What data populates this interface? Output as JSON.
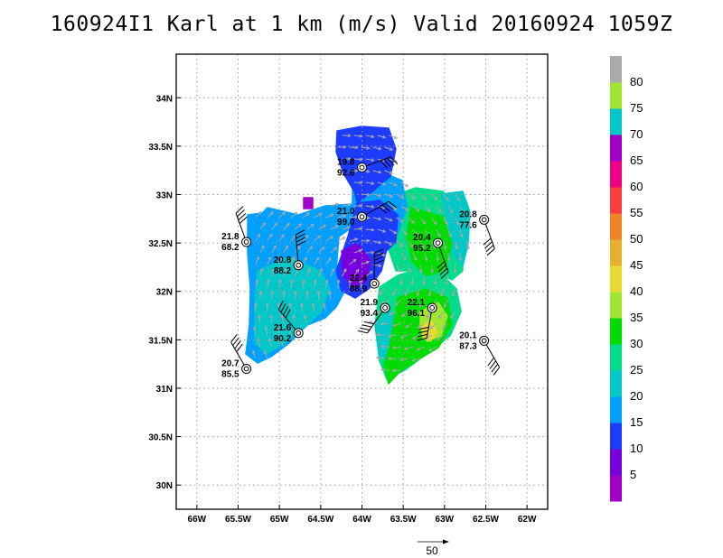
{
  "title": "160924I1 Karl at 1 km (m/s) Valid 20160924 1059Z",
  "map": {
    "lon_range": [
      -66.25,
      -61.75
    ],
    "lat_range": [
      29.75,
      34.45
    ],
    "lon_ticks": [
      {
        "v": -66,
        "label": "66W"
      },
      {
        "v": -65.5,
        "label": "65.5W"
      },
      {
        "v": -65,
        "label": "65W"
      },
      {
        "v": -64.5,
        "label": "64.5W"
      },
      {
        "v": -64,
        "label": "64W"
      },
      {
        "v": -63.5,
        "label": "63.5W"
      },
      {
        "v": -63,
        "label": "63W"
      },
      {
        "v": -62.5,
        "label": "62.5W"
      },
      {
        "v": -62,
        "label": "62W"
      }
    ],
    "lat_ticks": [
      {
        "v": 34,
        "label": "34N"
      },
      {
        "v": 33.5,
        "label": "33.5N"
      },
      {
        "v": 33,
        "label": "33N"
      },
      {
        "v": 32.5,
        "label": "32.5N"
      },
      {
        "v": 32,
        "label": "32N"
      },
      {
        "v": 31.5,
        "label": "31.5N"
      },
      {
        "v": 31,
        "label": "31N"
      },
      {
        "v": 30.5,
        "label": "30.5N"
      },
      {
        "v": 30,
        "label": "30N"
      }
    ],
    "grid": true,
    "center": {
      "lon": -63.85,
      "lat": 32.08
    }
  },
  "colorbar": {
    "levels": [
      {
        "label": "",
        "color": "#a000c8"
      },
      {
        "label": "5",
        "color": "#7800dc"
      },
      {
        "label": "10",
        "color": "#1e3cff"
      },
      {
        "label": "15",
        "color": "#00a0ff"
      },
      {
        "label": "20",
        "color": "#00c8c8"
      },
      {
        "label": "25",
        "color": "#00dc8c"
      },
      {
        "label": "30",
        "color": "#00dc00"
      },
      {
        "label": "35",
        "color": "#a0e632"
      },
      {
        "label": "40",
        "color": "#e6dc32"
      },
      {
        "label": "45",
        "color": "#e6af2d"
      },
      {
        "label": "50",
        "color": "#f08228"
      },
      {
        "label": "55",
        "color": "#fa3c3c"
      },
      {
        "label": "60",
        "color": "#f00082"
      },
      {
        "label": "65",
        "color": "#a000c8"
      },
      {
        "label": "70",
        "color": "#00c8c8"
      },
      {
        "label": "75",
        "color": "#a0e632"
      },
      {
        "label": "80",
        "color": "#aaaaaa"
      }
    ]
  },
  "stations": [
    {
      "lon": -64.0,
      "lat": 33.28,
      "speed": "19.8",
      "dir": "92.6",
      "barb_dir": 70
    },
    {
      "lon": -64.0,
      "lat": 32.77,
      "speed": "21.0",
      "dir": "99.0",
      "barb_dir": 60
    },
    {
      "lon": -65.4,
      "lat": 32.51,
      "speed": "21.8",
      "dir": "68.2",
      "barb_dir": 340
    },
    {
      "lon": -64.77,
      "lat": 32.27,
      "speed": "20.8",
      "dir": "88.2",
      "barb_dir": 355
    },
    {
      "lon": -63.85,
      "lat": 32.08,
      "speed": "22.4",
      "dir": "88.9",
      "barb_dir": 0
    },
    {
      "lon": -63.08,
      "lat": 32.5,
      "speed": "20.4",
      "dir": "95.2",
      "barb_dir": 160
    },
    {
      "lon": -62.52,
      "lat": 32.74,
      "speed": "20.8",
      "dir": "77.6",
      "barb_dir": 160
    },
    {
      "lon": -63.72,
      "lat": 31.83,
      "speed": "21.9",
      "dir": "93.4",
      "barb_dir": 215
    },
    {
      "lon": -63.15,
      "lat": 31.83,
      "speed": "22.1",
      "dir": "96.1",
      "barb_dir": 190
    },
    {
      "lon": -64.77,
      "lat": 31.57,
      "speed": "21.6",
      "dir": "90.2",
      "barb_dir": 320
    },
    {
      "lon": -62.52,
      "lat": 31.49,
      "speed": "20.1",
      "dir": "87.3",
      "barb_dir": 150
    },
    {
      "lon": -65.4,
      "lat": 31.2,
      "speed": "20.7",
      "dir": "85.5",
      "barb_dir": 330
    }
  ],
  "reference_vector": {
    "label": "50"
  }
}
